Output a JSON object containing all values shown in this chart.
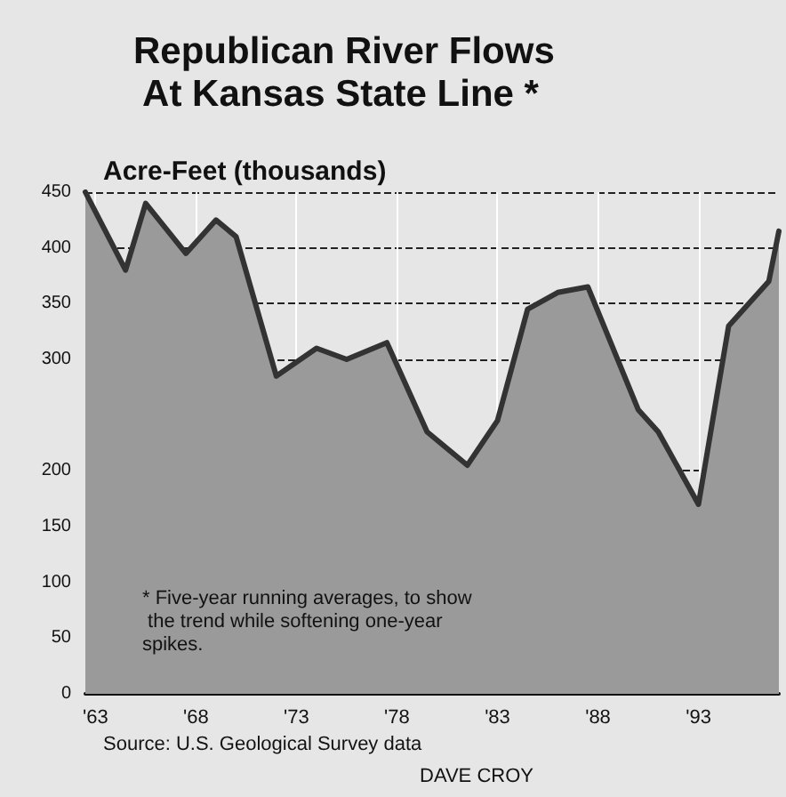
{
  "chart_data": {
    "type": "area",
    "title": "Republican River Flows At Kansas State Line *",
    "ylabel": "Acre-Feet (thousands)",
    "annotations": [
      "* Five-year running averages, to show the trend while softening one-year spikes.",
      "Source: U.S. Geological Survey data",
      "DAVE CROY"
    ],
    "series": [
      {
        "color": "#333333",
        "x": [
          1962.5,
          1964.5,
          1965.5,
          1967.5,
          1969,
          1970,
          1972,
          1974,
          1975.5,
          1977.5,
          1979.5,
          1981.5,
          1983,
          1984.5,
          1986,
          1987.5,
          1990,
          1991,
          1993,
          1994.5,
          1996.5,
          1997
        ],
        "values": [
          450,
          380,
          440,
          395,
          425,
          410,
          285,
          310,
          300,
          315,
          235,
          205,
          245,
          345,
          360,
          365,
          255,
          235,
          170,
          330,
          370,
          415
        ]
      }
    ],
    "xlim": [
      1962.5,
      1997
    ],
    "xticks": [
      {
        "value": 1963,
        "label": "'63"
      },
      {
        "value": 1968,
        "label": "'68"
      },
      {
        "value": 1973,
        "label": "'73"
      },
      {
        "value": 1978,
        "label": "'78"
      },
      {
        "value": 1983,
        "label": "'83"
      },
      {
        "value": 1988,
        "label": "'88"
      },
      {
        "value": 1993,
        "label": "'93"
      }
    ],
    "ylim": [
      0,
      450
    ],
    "yticks": [
      0,
      50,
      100,
      150,
      200,
      300,
      350,
      400,
      450
    ],
    "grid": true,
    "marker": "none",
    "line_style": "solid"
  }
}
